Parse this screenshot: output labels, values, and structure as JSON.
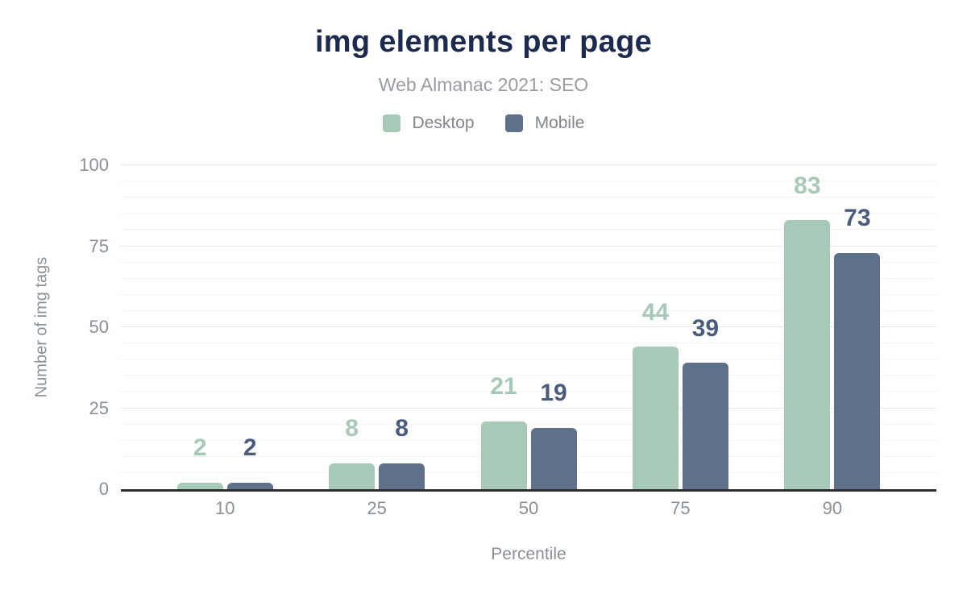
{
  "chart_data": {
    "type": "bar",
    "title": "img elements per page",
    "subtitle": "Web Almanac 2021: SEO",
    "xlabel": "Percentile",
    "ylabel": "Number of img tags",
    "categories": [
      "10",
      "25",
      "50",
      "75",
      "90"
    ],
    "series": [
      {
        "name": "Desktop",
        "values": [
          2,
          8,
          21,
          44,
          83
        ],
        "bar_color": "#a7cab8",
        "label_color": "#a7cab8"
      },
      {
        "name": "Mobile",
        "values": [
          2,
          8,
          19,
          39,
          73
        ],
        "bar_color": "#5f708a",
        "label_color": "#4a5b7e"
      }
    ],
    "ylim": [
      0,
      100
    ],
    "yticks": [
      0,
      25,
      50,
      75,
      100
    ],
    "grid": {
      "on": true,
      "minor_step": 5,
      "major_step": 25,
      "minor_color": "#f5f5f5",
      "major_color": "#e8e8e8"
    },
    "legend_position": "top",
    "title_color": "#1b2a4e",
    "axis_line_color": "#2e2e2e"
  }
}
